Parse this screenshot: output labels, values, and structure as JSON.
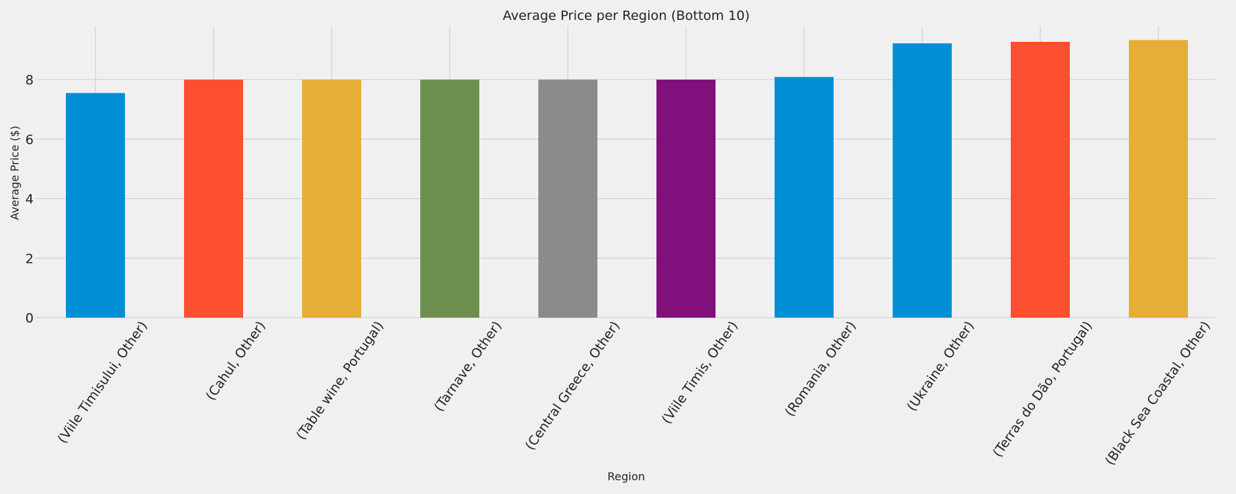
{
  "chart_data": {
    "type": "bar",
    "title": "Average Price per Region (Bottom 10)",
    "xlabel": "Region",
    "ylabel": "Average Price ($)",
    "categories": [
      "(Viile Timisului, Other)",
      "(Cahul, Other)",
      "(Table wine, Portugal)",
      "(Tarnave, Other)",
      "(Central Greece, Other)",
      "(Viile Timis, Other)",
      "(Romania, Other)",
      "(Ukraine, Other)",
      "(Terras do Dão, Portugal)",
      "(Black Sea Coastal, Other)"
    ],
    "values": [
      7.55,
      8.0,
      8.0,
      8.0,
      8.0,
      8.0,
      8.09,
      9.22,
      9.27,
      9.33
    ],
    "colors": [
      "#008fd5",
      "#fc4f30",
      "#e5ae38",
      "#6d904f",
      "#8b8b8b",
      "#810f7c",
      "#008fd5",
      "#008fd5",
      "#fc4f30",
      "#e5ae38"
    ],
    "yticks": [
      "0",
      "2",
      "4",
      "6",
      "8"
    ],
    "ylim": [
      0,
      9.8
    ],
    "grid": true,
    "style": "fivethirtyeight"
  }
}
